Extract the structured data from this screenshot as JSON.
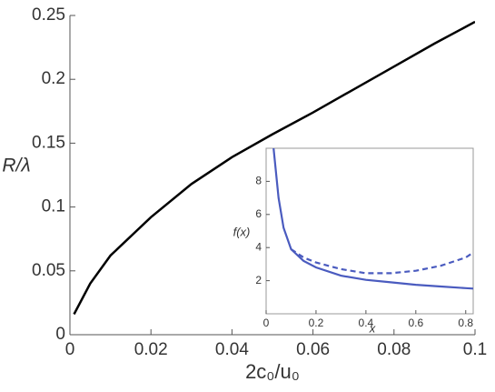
{
  "chart_data": [
    {
      "type": "line",
      "x_label": "2c₀/u₀",
      "y_label": "R/λ",
      "x": [
        0.001,
        0.005,
        0.01,
        0.02,
        0.03,
        0.04,
        0.05,
        0.06,
        0.07,
        0.08,
        0.09,
        0.1
      ],
      "series": [
        {
          "color": "#000000",
          "dashed": false,
          "values": [
            0.016,
            0.04,
            0.062,
            0.092,
            0.118,
            0.139,
            0.157,
            0.174,
            0.192,
            0.21,
            0.228,
            0.245
          ]
        }
      ],
      "xlim": [
        0,
        0.1
      ],
      "ylim": [
        0,
        0.25
      ],
      "xticks": [
        0,
        0.02,
        0.04,
        0.06,
        0.08,
        0.1
      ],
      "yticks": [
        0,
        0.05,
        0.1,
        0.15,
        0.2,
        0.25
      ]
    },
    {
      "type": "line",
      "x_label": "x",
      "y_label": "f(x)",
      "x": [
        0.03,
        0.05,
        0.07,
        0.1,
        0.15,
        0.2,
        0.3,
        0.4,
        0.5,
        0.6,
        0.7,
        0.8,
        0.83
      ],
      "series": [
        {
          "color": "#4a5bbf",
          "dashed": false,
          "values": [
            10,
            7,
            5.2,
            3.9,
            3.2,
            2.8,
            2.3,
            2.05,
            1.9,
            1.75,
            1.65,
            1.55,
            1.52
          ]
        },
        {
          "color": "#4a5bbf",
          "dashed": true,
          "values": [
            null,
            null,
            null,
            3.9,
            3.4,
            3.1,
            2.7,
            2.45,
            2.45,
            2.6,
            2.9,
            3.4,
            3.7
          ]
        }
      ],
      "xlim": [
        0,
        0.83
      ],
      "ylim": [
        0,
        10
      ],
      "xticks": [
        0,
        0.2,
        0.4,
        0.6,
        0.8
      ],
      "yticks": [
        2,
        4,
        6,
        8
      ]
    }
  ]
}
